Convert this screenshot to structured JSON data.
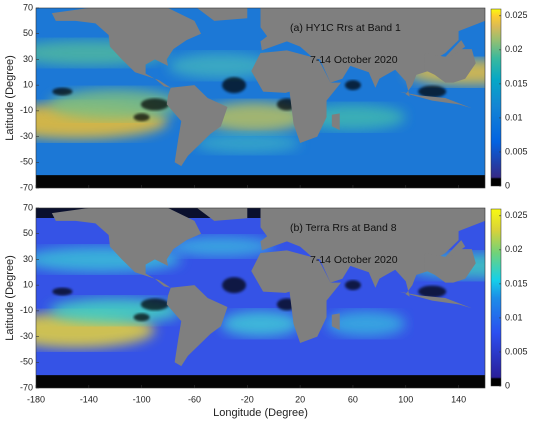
{
  "xlabel": "Longitude (Degree)",
  "xlim": [
    -180,
    160
  ],
  "xticks": [
    -180,
    -140,
    -100,
    -60,
    -20,
    20,
    60,
    100,
    140
  ],
  "panels": [
    {
      "title": "(a) HY1C Rrs at Band 1",
      "date": "7-14 October 2020",
      "ylabel": "Latitude (Degree)",
      "ylim": [
        -70,
        70
      ],
      "yticks": [
        70,
        50,
        30,
        10,
        -10,
        -30,
        -50,
        -70
      ],
      "colorbar": {
        "clim": [
          0,
          0.026
        ],
        "ticks": [
          0,
          0.005,
          0.01,
          0.015,
          0.02,
          0.025
        ]
      }
    },
    {
      "title": "(b) Terra Rrs at Band 8",
      "date": "7-14 October 2020",
      "ylabel": "Latitude (Degree)",
      "ylim": [
        -70,
        70
      ],
      "yticks": [
        70,
        50,
        30,
        10,
        -10,
        -30,
        -50,
        -70
      ],
      "colorbar": {
        "clim": [
          0,
          0.026
        ],
        "ticks": [
          0,
          0.005,
          0.01,
          0.015,
          0.02,
          0.025
        ]
      }
    }
  ]
}
